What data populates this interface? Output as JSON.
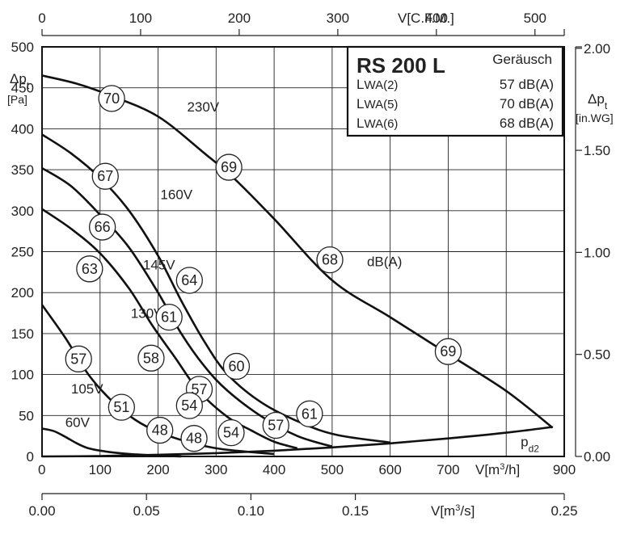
{
  "chart_data": {
    "type": "line",
    "title": "RS 200 L",
    "noise_label": "Geräusch",
    "noise_rows": [
      {
        "label": "LWA(2)",
        "value": "57 dB(A)"
      },
      {
        "label": "LWA(5)",
        "value": "70 dB(A)"
      },
      {
        "label": "LWA(6)",
        "value": "68 dB(A)"
      }
    ],
    "x_axis": {
      "label": "V[m³/h]",
      "range": [
        0,
        900
      ],
      "ticks": [
        "0",
        "100",
        "200",
        "300",
        "400",
        "500",
        "600",
        "700",
        "900"
      ]
    },
    "y_axis": {
      "label_line1": "Δpt",
      "label_line2": "[Pa]",
      "range": [
        0,
        500
      ],
      "ticks": [
        "0",
        "50",
        "100",
        "150",
        "200",
        "250",
        "300",
        "350",
        "400",
        "450",
        "500"
      ]
    },
    "top_axis": {
      "label": "V[C.F.M.]",
      "range": [
        0,
        529.7
      ],
      "ticks": [
        "0",
        "100",
        "200",
        "300",
        "400",
        "500"
      ]
    },
    "right_axis": {
      "label_line1": "Δpt",
      "label_line2": "[in.WG]",
      "range": [
        0,
        2.007
      ],
      "ticks": [
        "0.00",
        "0.50",
        "1.00",
        "1.50",
        "2.00"
      ]
    },
    "bottom_axis": {
      "label": "V[m³/s]",
      "range": [
        0,
        0.25
      ],
      "ticks": [
        "0.00",
        "0.05",
        "0.10",
        "0.15",
        "0.25"
      ]
    },
    "grid": true,
    "series": [
      {
        "name": "230V",
        "x": [
          0,
          60,
          120,
          200,
          280,
          330,
          400,
          500,
          600,
          700,
          800,
          880
        ],
        "y": [
          465,
          455,
          440,
          415,
          370,
          340,
          290,
          215,
          170,
          125,
          80,
          35
        ]
      },
      {
        "name": "160V",
        "x": [
          0,
          50,
          100,
          150,
          200,
          240,
          280,
          320,
          380,
          450,
          510,
          600
        ],
        "y": [
          393,
          370,
          340,
          300,
          245,
          190,
          140,
          100,
          65,
          40,
          26,
          17
        ]
      },
      {
        "name": "145V",
        "x": [
          0,
          50,
          100,
          150,
          200,
          240,
          280,
          320,
          380,
          440,
          500
        ],
        "y": [
          352,
          330,
          295,
          255,
          200,
          150,
          110,
          80,
          48,
          25,
          12
        ]
      },
      {
        "name": "130V",
        "x": [
          0,
          50,
          100,
          150,
          190,
          230,
          270,
          320,
          360,
          400,
          440
        ],
        "y": [
          302,
          278,
          248,
          205,
          160,
          120,
          80,
          48,
          32,
          18,
          10
        ]
      },
      {
        "name": "105V",
        "x": [
          0,
          40,
          80,
          120,
          160,
          200,
          250,
          300,
          350,
          400
        ],
        "y": [
          185,
          145,
          100,
          68,
          45,
          30,
          18,
          10,
          6,
          3
        ]
      },
      {
        "name": "60V",
        "x": [
          0,
          20,
          40,
          60,
          80,
          110,
          150,
          200,
          240
        ],
        "y": [
          34,
          31,
          24,
          16,
          10,
          6,
          3,
          1,
          0
        ]
      },
      {
        "name": "pd2",
        "x": [
          0,
          100,
          200,
          300,
          400,
          500,
          600,
          700,
          800,
          880
        ],
        "y": [
          0,
          0.5,
          2,
          4,
          7,
          11,
          16,
          22,
          29,
          36
        ]
      }
    ],
    "annotations": [
      {
        "text": "70",
        "x": 120,
        "y": 437
      },
      {
        "text": "69",
        "x": 322,
        "y": 353
      },
      {
        "text": "68",
        "x": 496,
        "y": 240
      },
      {
        "text": "69",
        "x": 700,
        "y": 128
      },
      {
        "text": "67",
        "x": 109,
        "y": 342
      },
      {
        "text": "66",
        "x": 104,
        "y": 280
      },
      {
        "text": "63",
        "x": 82,
        "y": 229
      },
      {
        "text": "64",
        "x": 254,
        "y": 215
      },
      {
        "text": "61",
        "x": 219,
        "y": 170
      },
      {
        "text": "60",
        "x": 335,
        "y": 110
      },
      {
        "text": "58",
        "x": 188,
        "y": 120
      },
      {
        "text": "57",
        "x": 271,
        "y": 82
      },
      {
        "text": "57",
        "x": 63,
        "y": 119
      },
      {
        "text": "54",
        "x": 254,
        "y": 62
      },
      {
        "text": "51",
        "x": 137,
        "y": 60
      },
      {
        "text": "61",
        "x": 461,
        "y": 52
      },
      {
        "text": "57",
        "x": 403,
        "y": 38
      },
      {
        "text": "54",
        "x": 326,
        "y": 29
      },
      {
        "text": "48",
        "x": 203,
        "y": 32
      },
      {
        "text": "48",
        "x": 262,
        "y": 22
      }
    ],
    "text_labels": [
      {
        "text": "230V",
        "x": 250,
        "y": 427
      },
      {
        "text": "160V",
        "x": 204,
        "y": 320
      },
      {
        "text": "145V",
        "x": 174,
        "y": 234
      },
      {
        "text": "130V",
        "x": 153,
        "y": 175
      },
      {
        "text": "105V",
        "x": 50,
        "y": 83
      },
      {
        "text": "60V",
        "x": 40,
        "y": 42
      },
      {
        "text": "dB(A)",
        "x": 560,
        "y": 238
      },
      {
        "text": "pd2",
        "x": 825,
        "y": 18
      }
    ]
  }
}
